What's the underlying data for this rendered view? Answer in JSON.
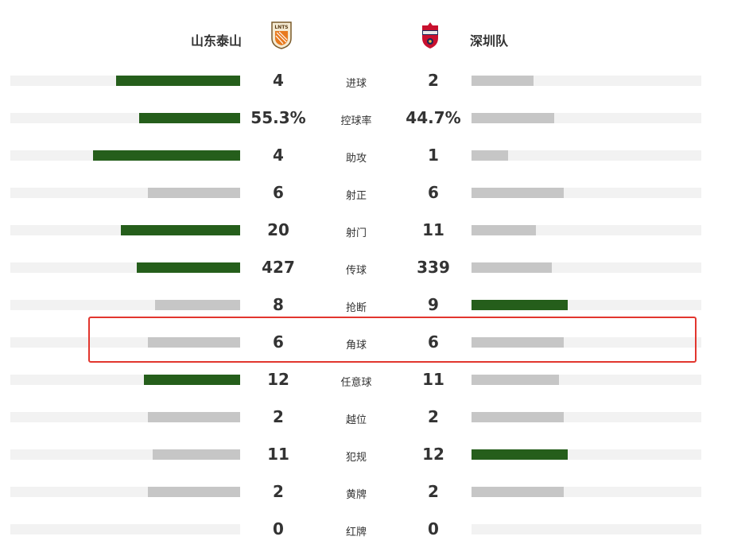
{
  "home_team": {
    "name": "山东泰山",
    "crest_icon": "shandong-taishan-crest-icon",
    "crest_text": "LNTS"
  },
  "away_team": {
    "name": "深圳队",
    "crest_icon": "shenzhen-fc-crest-icon"
  },
  "colors": {
    "lead_bar": "#255e1b",
    "trail_bar": "#c6c6c6",
    "track": "#f2f2f2",
    "highlight_border": "#e2362e"
  },
  "highlighted_stat": "角球",
  "stats": [
    {
      "label": "进球",
      "home": "4",
      "away": "2",
      "home_fill": 0.54,
      "away_fill": 0.27,
      "lead": "home"
    },
    {
      "label": "控球率",
      "home": "55.3%",
      "away": "44.7%",
      "home_fill": 0.44,
      "away_fill": 0.36,
      "lead": "home"
    },
    {
      "label": "助攻",
      "home": "4",
      "away": "1",
      "home_fill": 0.64,
      "away_fill": 0.16,
      "lead": "home"
    },
    {
      "label": "射正",
      "home": "6",
      "away": "6",
      "home_fill": 0.4,
      "away_fill": 0.4,
      "lead": "none"
    },
    {
      "label": "射门",
      "home": "20",
      "away": "11",
      "home_fill": 0.52,
      "away_fill": 0.28,
      "lead": "home"
    },
    {
      "label": "传球",
      "home": "427",
      "away": "339",
      "home_fill": 0.45,
      "away_fill": 0.35,
      "lead": "home"
    },
    {
      "label": "抢断",
      "home": "8",
      "away": "9",
      "home_fill": 0.37,
      "away_fill": 0.42,
      "lead": "away"
    },
    {
      "label": "角球",
      "home": "6",
      "away": "6",
      "home_fill": 0.4,
      "away_fill": 0.4,
      "lead": "none"
    },
    {
      "label": "任意球",
      "home": "12",
      "away": "11",
      "home_fill": 0.42,
      "away_fill": 0.38,
      "lead": "home"
    },
    {
      "label": "越位",
      "home": "2",
      "away": "2",
      "home_fill": 0.4,
      "away_fill": 0.4,
      "lead": "none"
    },
    {
      "label": "犯规",
      "home": "11",
      "away": "12",
      "home_fill": 0.38,
      "away_fill": 0.42,
      "lead": "away"
    },
    {
      "label": "黄牌",
      "home": "2",
      "away": "2",
      "home_fill": 0.4,
      "away_fill": 0.4,
      "lead": "none"
    },
    {
      "label": "红牌",
      "home": "0",
      "away": "0",
      "home_fill": 0,
      "away_fill": 0,
      "lead": "none"
    }
  ]
}
